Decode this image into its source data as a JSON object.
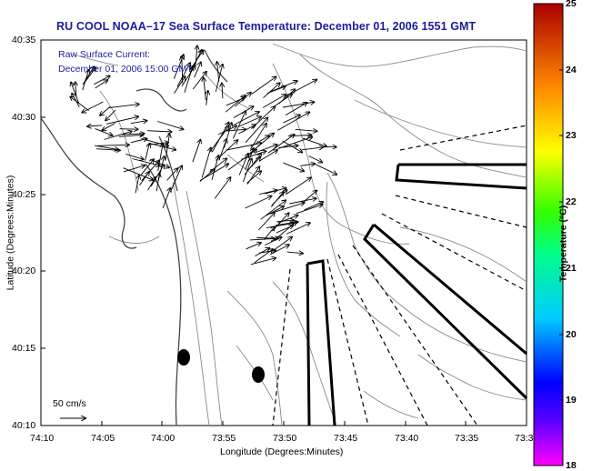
{
  "title": "RU COOL  NOAA–17  Sea Surface Temperature:  December 01, 2006 1551 GMT",
  "overlay": {
    "line1": "Raw Surface Current:",
    "line2": "December 01, 2006 15:00 GMT"
  },
  "scale_label": "50 cm/s",
  "xaxis": {
    "label": "Longitude (Degrees:Minutes)",
    "ticks": [
      "74:10",
      "74:05",
      "74:00",
      "73:55",
      "73:50",
      "73:45",
      "73:40",
      "73:35",
      "73:3"
    ]
  },
  "yaxis": {
    "label": "Latitude (Degrees:Minutes)",
    "ticks": [
      "40:35",
      "40:30",
      "40:25",
      "40:20",
      "40:15",
      "40:10"
    ]
  },
  "colorbar": {
    "label": "Temperature (°C)",
    "ticks": [
      "25",
      "24",
      "23",
      "22",
      "21",
      "20",
      "19",
      "18"
    ],
    "range": [
      18,
      25
    ]
  },
  "map_features": [
    "coastline",
    "bathymetry-contours",
    "current-vectors",
    "sampling-boxes",
    "survey-lines",
    "station-markers"
  ]
}
